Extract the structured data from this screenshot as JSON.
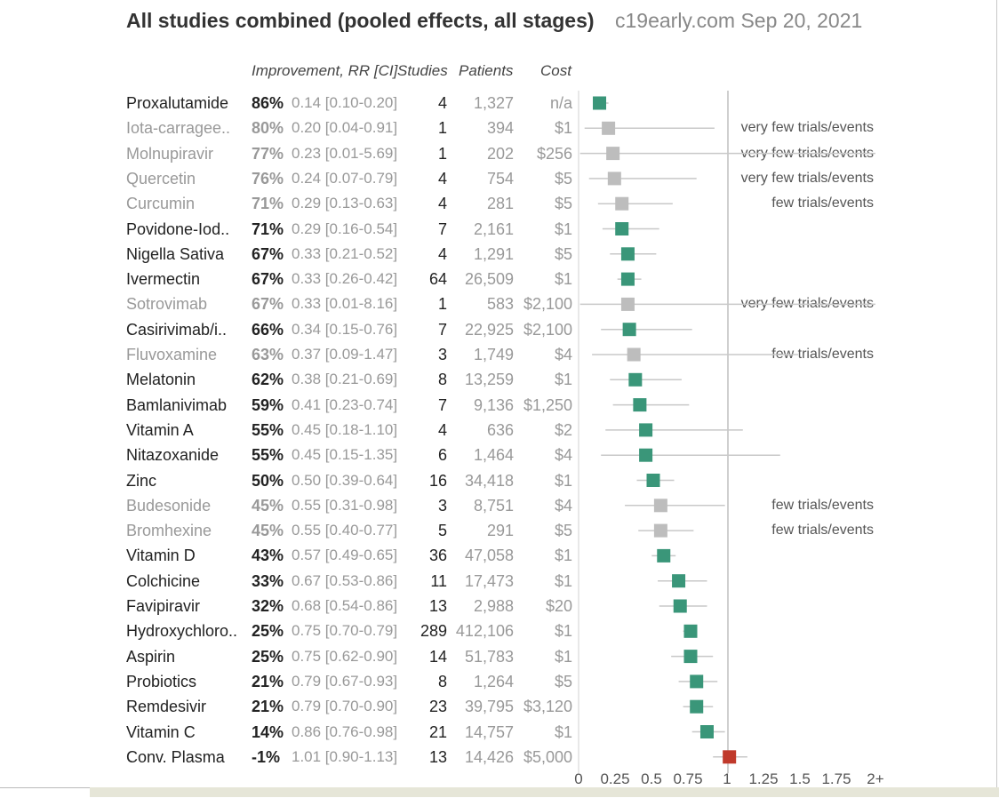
{
  "header": {
    "title": "All studies combined (pooled effects, all stages)",
    "source": "c19early.com Sep 20, 2021"
  },
  "columns": {
    "improvement": "Improvement, RR [CI]",
    "studies": "Studies",
    "patients": "Patients",
    "cost": "Cost"
  },
  "chart_data": {
    "type": "forest",
    "x_ticks": [
      "0",
      "0.25",
      "0.5",
      "0.75",
      "1",
      "1.25",
      "1.5",
      "1.75",
      "2+"
    ],
    "xlim": [
      0,
      2
    ],
    "reference_line": 1,
    "colors": {
      "significant": "#3a9679",
      "low_evidence": "#bdbdbd",
      "harm": "#c0392b",
      "ci_line": "#c8c8c8"
    },
    "rows": [
      {
        "name": "Proxalutamide",
        "improvement": "86%",
        "rr_text": "0.14 [0.10-0.20]",
        "rr": 0.14,
        "lo": 0.1,
        "hi": 0.2,
        "studies": "4",
        "patients": "1,327",
        "cost": "n/a",
        "note": "",
        "style": "significant"
      },
      {
        "name": "Iota-carragee..",
        "improvement": "80%",
        "rr_text": "0.20 [0.04-0.91]",
        "rr": 0.2,
        "lo": 0.04,
        "hi": 0.91,
        "studies": "1",
        "patients": "394",
        "cost": "$1",
        "note": "very few trials/events",
        "style": "low_evidence"
      },
      {
        "name": "Molnupiravir",
        "improvement": "77%",
        "rr_text": "0.23 [0.01-5.69]",
        "rr": 0.23,
        "lo": 0.01,
        "hi": 5.69,
        "studies": "1",
        "patients": "202",
        "cost": "$256",
        "note": "very few trials/events",
        "style": "low_evidence"
      },
      {
        "name": "Quercetin",
        "improvement": "76%",
        "rr_text": "0.24 [0.07-0.79]",
        "rr": 0.24,
        "lo": 0.07,
        "hi": 0.79,
        "studies": "4",
        "patients": "754",
        "cost": "$5",
        "note": "very few trials/events",
        "style": "low_evidence"
      },
      {
        "name": "Curcumin",
        "improvement": "71%",
        "rr_text": "0.29 [0.13-0.63]",
        "rr": 0.29,
        "lo": 0.13,
        "hi": 0.63,
        "studies": "4",
        "patients": "281",
        "cost": "$5",
        "note": "few trials/events",
        "style": "low_evidence"
      },
      {
        "name": "Povidone-Iod..",
        "improvement": "71%",
        "rr_text": "0.29 [0.16-0.54]",
        "rr": 0.29,
        "lo": 0.16,
        "hi": 0.54,
        "studies": "7",
        "patients": "2,161",
        "cost": "$1",
        "note": "",
        "style": "significant"
      },
      {
        "name": "Nigella Sativa",
        "improvement": "67%",
        "rr_text": "0.33 [0.21-0.52]",
        "rr": 0.33,
        "lo": 0.21,
        "hi": 0.52,
        "studies": "4",
        "patients": "1,291",
        "cost": "$5",
        "note": "",
        "style": "significant"
      },
      {
        "name": "Ivermectin",
        "improvement": "67%",
        "rr_text": "0.33 [0.26-0.42]",
        "rr": 0.33,
        "lo": 0.26,
        "hi": 0.42,
        "studies": "64",
        "patients": "26,509",
        "cost": "$1",
        "note": "",
        "style": "significant"
      },
      {
        "name": "Sotrovimab",
        "improvement": "67%",
        "rr_text": "0.33 [0.01-8.16]",
        "rr": 0.33,
        "lo": 0.01,
        "hi": 8.16,
        "studies": "1",
        "patients": "583",
        "cost": "$2,100",
        "note": "very few trials/events",
        "style": "low_evidence"
      },
      {
        "name": "Casirivimab/i..",
        "improvement": "66%",
        "rr_text": "0.34 [0.15-0.76]",
        "rr": 0.34,
        "lo": 0.15,
        "hi": 0.76,
        "studies": "7",
        "patients": "22,925",
        "cost": "$2,100",
        "note": "",
        "style": "significant"
      },
      {
        "name": "Fluvoxamine",
        "improvement": "63%",
        "rr_text": "0.37 [0.09-1.47]",
        "rr": 0.37,
        "lo": 0.09,
        "hi": 1.47,
        "studies": "3",
        "patients": "1,749",
        "cost": "$4",
        "note": "few trials/events",
        "style": "low_evidence"
      },
      {
        "name": "Melatonin",
        "improvement": "62%",
        "rr_text": "0.38 [0.21-0.69]",
        "rr": 0.38,
        "lo": 0.21,
        "hi": 0.69,
        "studies": "8",
        "patients": "13,259",
        "cost": "$1",
        "note": "",
        "style": "significant"
      },
      {
        "name": "Bamlanivimab",
        "improvement": "59%",
        "rr_text": "0.41 [0.23-0.74]",
        "rr": 0.41,
        "lo": 0.23,
        "hi": 0.74,
        "studies": "7",
        "patients": "9,136",
        "cost": "$1,250",
        "note": "",
        "style": "significant"
      },
      {
        "name": "Vitamin A",
        "improvement": "55%",
        "rr_text": "0.45 [0.18-1.10]",
        "rr": 0.45,
        "lo": 0.18,
        "hi": 1.1,
        "studies": "4",
        "patients": "636",
        "cost": "$2",
        "note": "",
        "style": "significant"
      },
      {
        "name": "Nitazoxanide",
        "improvement": "55%",
        "rr_text": "0.45 [0.15-1.35]",
        "rr": 0.45,
        "lo": 0.15,
        "hi": 1.35,
        "studies": "6",
        "patients": "1,464",
        "cost": "$4",
        "note": "",
        "style": "significant"
      },
      {
        "name": "Zinc",
        "improvement": "50%",
        "rr_text": "0.50 [0.39-0.64]",
        "rr": 0.5,
        "lo": 0.39,
        "hi": 0.64,
        "studies": "16",
        "patients": "34,418",
        "cost": "$1",
        "note": "",
        "style": "significant"
      },
      {
        "name": "Budesonide",
        "improvement": "45%",
        "rr_text": "0.55 [0.31-0.98]",
        "rr": 0.55,
        "lo": 0.31,
        "hi": 0.98,
        "studies": "3",
        "patients": "8,751",
        "cost": "$4",
        "note": "few trials/events",
        "style": "low_evidence"
      },
      {
        "name": "Bromhexine",
        "improvement": "45%",
        "rr_text": "0.55 [0.40-0.77]",
        "rr": 0.55,
        "lo": 0.4,
        "hi": 0.77,
        "studies": "5",
        "patients": "291",
        "cost": "$5",
        "note": "few trials/events",
        "style": "low_evidence"
      },
      {
        "name": "Vitamin D",
        "improvement": "43%",
        "rr_text": "0.57 [0.49-0.65]",
        "rr": 0.57,
        "lo": 0.49,
        "hi": 0.65,
        "studies": "36",
        "patients": "47,058",
        "cost": "$1",
        "note": "",
        "style": "significant"
      },
      {
        "name": "Colchicine",
        "improvement": "33%",
        "rr_text": "0.67 [0.53-0.86]",
        "rr": 0.67,
        "lo": 0.53,
        "hi": 0.86,
        "studies": "11",
        "patients": "17,473",
        "cost": "$1",
        "note": "",
        "style": "significant"
      },
      {
        "name": "Favipiravir",
        "improvement": "32%",
        "rr_text": "0.68 [0.54-0.86]",
        "rr": 0.68,
        "lo": 0.54,
        "hi": 0.86,
        "studies": "13",
        "patients": "2,988",
        "cost": "$20",
        "note": "",
        "style": "significant"
      },
      {
        "name": "Hydroxychloro..",
        "improvement": "25%",
        "rr_text": "0.75 [0.70-0.79]",
        "rr": 0.75,
        "lo": 0.7,
        "hi": 0.79,
        "studies": "289",
        "patients": "412,106",
        "cost": "$1",
        "note": "",
        "style": "significant"
      },
      {
        "name": "Aspirin",
        "improvement": "25%",
        "rr_text": "0.75 [0.62-0.90]",
        "rr": 0.75,
        "lo": 0.62,
        "hi": 0.9,
        "studies": "14",
        "patients": "51,783",
        "cost": "$1",
        "note": "",
        "style": "significant"
      },
      {
        "name": "Probiotics",
        "improvement": "21%",
        "rr_text": "0.79 [0.67-0.93]",
        "rr": 0.79,
        "lo": 0.67,
        "hi": 0.93,
        "studies": "8",
        "patients": "1,264",
        "cost": "$5",
        "note": "",
        "style": "significant"
      },
      {
        "name": "Remdesivir",
        "improvement": "21%",
        "rr_text": "0.79 [0.70-0.90]",
        "rr": 0.79,
        "lo": 0.7,
        "hi": 0.9,
        "studies": "23",
        "patients": "39,795",
        "cost": "$3,120",
        "note": "",
        "style": "significant"
      },
      {
        "name": "Vitamin C",
        "improvement": "14%",
        "rr_text": "0.86 [0.76-0.98]",
        "rr": 0.86,
        "lo": 0.76,
        "hi": 0.98,
        "studies": "21",
        "patients": "14,757",
        "cost": "$1",
        "note": "",
        "style": "significant"
      },
      {
        "name": "Conv. Plasma",
        "improvement": "-1%",
        "rr_text": "1.01 [0.90-1.13]",
        "rr": 1.01,
        "lo": 0.9,
        "hi": 1.13,
        "studies": "13",
        "patients": "14,426",
        "cost": "$5,000",
        "note": "",
        "style": "harm"
      }
    ]
  }
}
